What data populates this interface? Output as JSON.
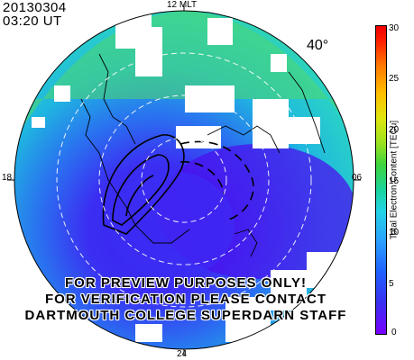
{
  "header": {
    "date": "20130304",
    "time": "03:20 UT"
  },
  "mlt_labels": {
    "top": "12 MLT",
    "left": "18",
    "right": "06",
    "bottom": "24"
  },
  "latitude_label": "40°",
  "watermark": [
    "FOR PREVIEW PURPOSES ONLY!",
    "FOR VERIFICATION PLEASE CONTACT",
    "DARTMOUTH COLLEGE SUPERDARN STAFF"
  ],
  "colorbar": {
    "title": "Total Electron Content [TECu]",
    "ticks": [
      "30",
      "25",
      "20",
      "15",
      "10",
      "5",
      "0"
    ],
    "range": [
      0,
      30
    ],
    "colors": {
      "min": "#7800ff",
      "mid": "#22d4e4",
      "max": "#f00000"
    }
  }
}
